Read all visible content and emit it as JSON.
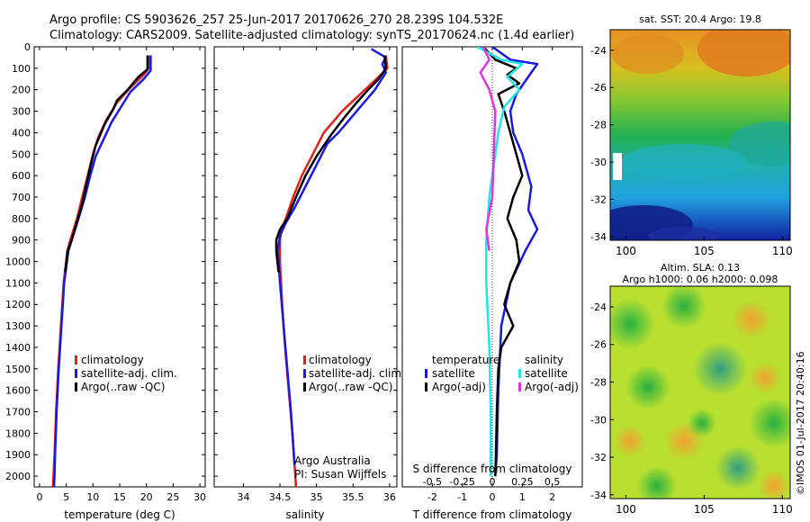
{
  "header": {
    "line1": "Argo profile: CS 5903626_257 25-Jun-2017 20170626_270 28.239S 104.532E",
    "line2": "Climatology: CARS2009. Satellite-adjusted climatology: synTS_20170624.nc (1.4d earlier)"
  },
  "colors": {
    "climatology": "#e0201c",
    "satellite": "#1a1adf",
    "argo": "#000000",
    "sat_salinity": "#1fe6e6",
    "argo_salinity": "#e033e0"
  },
  "chart_data": [
    {
      "type": "line",
      "name": "temperature-profile",
      "xlabel": "temperature (deg C)",
      "ylim": [
        2050,
        0
      ],
      "xlim": [
        -1,
        31
      ],
      "xticks": [
        0,
        5,
        10,
        15,
        20,
        25,
        30
      ],
      "yticks": [
        0,
        100,
        200,
        300,
        400,
        500,
        600,
        700,
        800,
        900,
        1000,
        1100,
        1200,
        1300,
        1400,
        1500,
        1600,
        1700,
        1800,
        1900,
        2000
      ],
      "legend": [
        "climatology",
        "satellite-adj. clim.",
        "Argo(..raw -QC)"
      ],
      "series": [
        {
          "name": "climatology",
          "color": "climatology",
          "points": [
            [
              20.4,
              40
            ],
            [
              20.4,
              100
            ],
            [
              19.5,
              130
            ],
            [
              17,
              190
            ],
            [
              14.5,
              260
            ],
            [
              12.5,
              340
            ],
            [
              11,
              420
            ],
            [
              10,
              500
            ],
            [
              9,
              600
            ],
            [
              8,
              700
            ],
            [
              7,
              800
            ],
            [
              6,
              880
            ],
            [
              5.2,
              950
            ],
            [
              4.5,
              1100
            ],
            [
              4,
              1300
            ],
            [
              3.5,
              1500
            ],
            [
              3.1,
              1700
            ],
            [
              2.8,
              1900
            ],
            [
              2.6,
              2000
            ],
            [
              2.5,
              2050
            ]
          ]
        },
        {
          "name": "satellite-adj. clim.",
          "color": "satellite",
          "points": [
            [
              20.8,
              40
            ],
            [
              20.8,
              110
            ],
            [
              19.5,
              150
            ],
            [
              17,
              210
            ],
            [
              15.5,
              270
            ],
            [
              13.5,
              350
            ],
            [
              12,
              430
            ],
            [
              10.5,
              510
            ],
            [
              9.5,
              600
            ],
            [
              8.5,
              700
            ],
            [
              7.3,
              800
            ],
            [
              6.3,
              880
            ],
            [
              5.4,
              950
            ],
            [
              4.6,
              1100
            ],
            [
              4.1,
              1300
            ],
            [
              3.6,
              1500
            ],
            [
              3.2,
              1700
            ],
            [
              2.9,
              1900
            ],
            [
              2.8,
              2000
            ],
            [
              2.7,
              2050
            ]
          ]
        },
        {
          "name": "Argo(..raw -QC)",
          "color": "argo",
          "points": [
            [
              20.2,
              40
            ],
            [
              20.2,
              105
            ],
            [
              18.5,
              140
            ],
            [
              16.5,
              200
            ],
            [
              14.5,
              250
            ],
            [
              13.8,
              290
            ],
            [
              12.2,
              360
            ],
            [
              11.2,
              420
            ],
            [
              10.5,
              460
            ],
            [
              9.5,
              560
            ],
            [
              8.7,
              650
            ],
            [
              8,
              730
            ],
            [
              7.4,
              780
            ],
            [
              6.6,
              850
            ],
            [
              6,
              900
            ],
            [
              5.3,
              950
            ],
            [
              4.8,
              1050
            ]
          ]
        }
      ]
    },
    {
      "type": "line",
      "name": "salinity-profile",
      "xlabel": "salinity",
      "ylim": [
        2050,
        0
      ],
      "xlim": [
        33.6,
        36.1
      ],
      "xticks": [
        34,
        34.5,
        35,
        35.5,
        36
      ],
      "xticklabels": [
        "34",
        "34.5",
        "35",
        "35.5",
        "36"
      ],
      "legend": [
        "climatology",
        "satellite-adj. clim.",
        "Argo(..raw -QC)"
      ],
      "annotation": [
        "Argo Australia",
        "PI: Susan Wijffels"
      ],
      "series": [
        {
          "name": "climatology",
          "color": "climatology",
          "points": [
            [
              35.95,
              40
            ],
            [
              35.97,
              100
            ],
            [
              35.85,
              140
            ],
            [
              35.6,
              220
            ],
            [
              35.35,
              300
            ],
            [
              35.1,
              400
            ],
            [
              34.95,
              500
            ],
            [
              34.8,
              600
            ],
            [
              34.68,
              700
            ],
            [
              34.58,
              800
            ],
            [
              34.52,
              850
            ],
            [
              34.5,
              900
            ],
            [
              34.5,
              1000
            ],
            [
              34.53,
              1200
            ],
            [
              34.57,
              1400
            ],
            [
              34.62,
              1600
            ],
            [
              34.67,
              1800
            ],
            [
              34.7,
              1950
            ],
            [
              34.72,
              2050
            ]
          ]
        },
        {
          "name": "satellite-adj. clim.",
          "color": "satellite",
          "points": [
            [
              35.75,
              10
            ],
            [
              35.95,
              50
            ],
            [
              35.9,
              80
            ],
            [
              35.95,
              120
            ],
            [
              35.8,
              200
            ],
            [
              35.55,
              300
            ],
            [
              35.3,
              400
            ],
            [
              35.15,
              450
            ],
            [
              35.0,
              550
            ],
            [
              34.85,
              650
            ],
            [
              34.7,
              750
            ],
            [
              34.58,
              820
            ],
            [
              34.5,
              880
            ],
            [
              34.47,
              950
            ],
            [
              34.5,
              1100
            ],
            [
              34.55,
              1300
            ],
            [
              34.6,
              1500
            ],
            [
              34.65,
              1700
            ],
            [
              34.68,
              1850
            ],
            [
              34.7,
              1950
            ]
          ]
        },
        {
          "name": "Argo(..raw -QC)",
          "color": "argo",
          "points": [
            [
              35.93,
              40
            ],
            [
              35.95,
              100
            ],
            [
              35.85,
              150
            ],
            [
              35.68,
              210
            ],
            [
              35.55,
              260
            ],
            [
              35.38,
              330
            ],
            [
              35.2,
              410
            ],
            [
              35.0,
              510
            ],
            [
              34.85,
              600
            ],
            [
              34.72,
              700
            ],
            [
              34.6,
              800
            ],
            [
              34.5,
              850
            ],
            [
              34.45,
              900
            ],
            [
              34.45,
              950
            ],
            [
              34.48,
              1050
            ]
          ]
        }
      ]
    },
    {
      "type": "line",
      "name": "difference-profile",
      "xlabel": "T difference from climatology",
      "xlabel2": "S difference from climatology",
      "ylim": [
        2050,
        0
      ],
      "xlim": [
        -3,
        3
      ],
      "xticks": [
        -2,
        -1,
        0,
        1,
        2
      ],
      "xticks_top": [
        -0.5,
        -0.25,
        0,
        0.25,
        0.5
      ],
      "xticklabels_top": [
        "-0.5",
        "-0.25",
        "0",
        "0.25",
        "0.5"
      ],
      "legend_left": {
        "title": "temperature",
        "items": [
          "satellite",
          "Argo(-adj)"
        ]
      },
      "legend_right": {
        "title": "salinity",
        "items": [
          "satellite",
          "Argo(-adj)"
        ]
      },
      "series": [
        {
          "name": "temperature satellite",
          "color": "satellite",
          "points": [
            [
              0,
              0
            ],
            [
              0.6,
              60
            ],
            [
              1.5,
              80
            ],
            [
              1.2,
              140
            ],
            [
              0.8,
              220
            ],
            [
              0.6,
              300
            ],
            [
              0.7,
              400
            ],
            [
              1,
              500
            ],
            [
              1.3,
              650
            ],
            [
              1.2,
              760
            ],
            [
              1.5,
              850
            ],
            [
              1.1,
              950
            ],
            [
              0.6,
              1100
            ],
            [
              0.3,
              1300
            ],
            [
              0.2,
              1600
            ],
            [
              0.15,
              1900
            ],
            [
              0.1,
              2000
            ]
          ]
        },
        {
          "name": "temperature Argo(-adj)",
          "color": "argo",
          "points": [
            [
              -0.3,
              0
            ],
            [
              0.1,
              60
            ],
            [
              0.8,
              100
            ],
            [
              0.5,
              130
            ],
            [
              0.9,
              170
            ],
            [
              0.2,
              220
            ],
            [
              0.4,
              300
            ],
            [
              0.6,
              400
            ],
            [
              0.8,
              500
            ],
            [
              1,
              600
            ],
            [
              0.7,
              700
            ],
            [
              0.5,
              800
            ],
            [
              0.8,
              900
            ],
            [
              0.9,
              1000
            ],
            [
              0.6,
              1100
            ],
            [
              0.4,
              1200
            ],
            [
              0.7,
              1300
            ],
            [
              0.3,
              1400
            ],
            [
              0.2,
              1500
            ],
            [
              0.15,
              1700
            ],
            [
              0.12,
              1900
            ],
            [
              0.1,
              2000
            ]
          ]
        },
        {
          "name": "salinity satellite",
          "color": "sat_salinity",
          "points": [
            [
              -0.5,
              0
            ],
            [
              0.3,
              60
            ],
            [
              1,
              80
            ],
            [
              0.5,
              140
            ],
            [
              0.9,
              200
            ],
            [
              0.4,
              280
            ],
            [
              0.2,
              400
            ],
            [
              0.1,
              500
            ],
            [
              -0.1,
              700
            ],
            [
              -0.2,
              900
            ],
            [
              -0.2,
              1100
            ],
            [
              -0.1,
              1400
            ],
            [
              -0.05,
              1700
            ],
            [
              -0.05,
              2000
            ]
          ]
        },
        {
          "name": "salinity Argo(-adj)",
          "color": "argo_salinity",
          "points": [
            [
              -0.3,
              0
            ],
            [
              -0.1,
              60
            ],
            [
              -0.4,
              120
            ],
            [
              -0.1,
              200
            ],
            [
              0.1,
              300
            ],
            [
              0.05,
              500
            ],
            [
              0,
              700
            ],
            [
              -0.2,
              850
            ],
            [
              -0.1,
              950
            ]
          ]
        }
      ]
    }
  ],
  "maps": [
    {
      "title": "sat. SST: 20.4 Argo: 19.8",
      "xticks": [
        100,
        105,
        110
      ],
      "yticks": [
        -24,
        -26,
        -28,
        -30,
        -32,
        -34
      ]
    },
    {
      "title_line1": "Altim. SLA: 0.13",
      "title_line2": "Argo h1000: 0.06 h2000: 0.098",
      "xticks": [
        100,
        105,
        110
      ],
      "yticks": [
        -24,
        -26,
        -28,
        -30,
        -32,
        -34
      ]
    }
  ],
  "credit": "©IMOS 01-Jul-2017 20:40:16"
}
